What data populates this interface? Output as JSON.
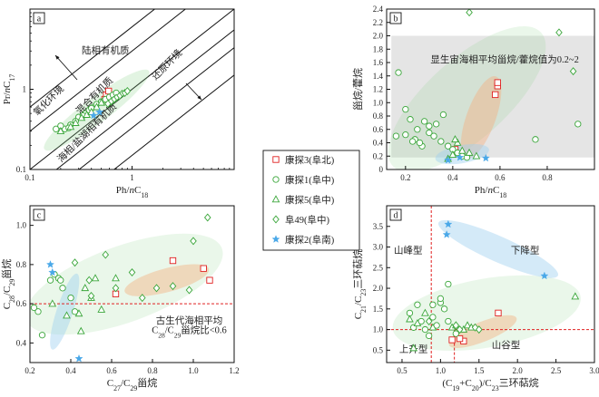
{
  "legend": {
    "entries": [
      {
        "label": "康探3(阜北)",
        "marker": "square",
        "color": "#e02020"
      },
      {
        "label": "康探1(阜中)",
        "marker": "circle",
        "color": "#3aa63a"
      },
      {
        "label": "康探5(阜中)",
        "marker": "triangle",
        "color": "#3aa63a"
      },
      {
        "label": "阜49(阜中)",
        "marker": "diamond",
        "color": "#3aa63a"
      },
      {
        "label": "康探2(阜南)",
        "marker": "star",
        "color": "#4aa8e8"
      }
    ]
  },
  "colors": {
    "red": "#e02020",
    "green": "#3aa63a",
    "blue": "#4aa8e8"
  },
  "chart_data": [
    {
      "id": "a",
      "panel_label": "a",
      "type": "scatter",
      "scale": "log-log",
      "xlabel": [
        "Ph/",
        "n",
        "C",
        "18"
      ],
      "ylabel": [
        "Pr/",
        "n",
        "C",
        "17"
      ],
      "xlim": [
        0.1,
        10
      ],
      "ylim": [
        0.1,
        10
      ],
      "xticks": [
        {
          "v": 0.1,
          "t": "0.1"
        },
        {
          "v": 1,
          "t": "1"
        }
      ],
      "yticks": [
        {
          "v": 0.1,
          "t": "0.1"
        },
        {
          "v": 1,
          "t": "1"
        }
      ],
      "annotations": [
        {
          "text": "陆相有机质",
          "x": 0.55,
          "y": 2.8,
          "color": "#e02020",
          "rotate": 0
        },
        {
          "text": "还原环境",
          "x": 2.3,
          "y": 1.9,
          "color": "#e02020",
          "rotate": -45
        },
        {
          "text": "混合有机质",
          "x": 0.45,
          "y": 0.78,
          "color": "#e02020",
          "rotate": -45
        },
        {
          "text": "氧化环境",
          "x": 0.16,
          "y": 0.68,
          "color": "#e02020",
          "rotate": -45
        },
        {
          "text": "海相/盐湖相有机质",
          "x": 0.38,
          "y": 0.27,
          "color": "#e02020",
          "rotate": -45
        }
      ],
      "series": [
        {
          "name": "康探3(阜北)",
          "marker": "square",
          "points": [
            [
              0.56,
              0.85
            ],
            [
              0.59,
              0.95
            ],
            [
              0.54,
              0.75
            ]
          ]
        },
        {
          "name": "康探1(阜中)",
          "marker": "circle",
          "points": [
            [
              0.22,
              0.32
            ],
            [
              0.25,
              0.36
            ],
            [
              0.3,
              0.45
            ],
            [
              0.35,
              0.5
            ],
            [
              0.38,
              0.55
            ],
            [
              0.42,
              0.6
            ],
            [
              0.45,
              0.65
            ],
            [
              0.5,
              0.7
            ],
            [
              0.55,
              0.75
            ],
            [
              0.6,
              0.8
            ],
            [
              0.65,
              0.85
            ],
            [
              0.7,
              0.9
            ],
            [
              0.28,
              0.4
            ],
            [
              0.33,
              0.47
            ],
            [
              0.4,
              0.58
            ],
            [
              0.18,
              0.32
            ],
            [
              0.2,
              0.35
            ],
            [
              0.24,
              0.33
            ]
          ]
        },
        {
          "name": "康探5(阜中)",
          "marker": "triangle",
          "points": [
            [
              0.2,
              0.3
            ],
            [
              0.25,
              0.34
            ],
            [
              0.28,
              0.38
            ],
            [
              0.32,
              0.44
            ],
            [
              0.36,
              0.48
            ],
            [
              0.4,
              0.52
            ],
            [
              0.45,
              0.6
            ],
            [
              0.5,
              0.68
            ]
          ]
        },
        {
          "name": "阜49(阜中)",
          "marker": "diamond",
          "points": [
            [
              0.8,
              0.88
            ],
            [
              0.85,
              0.9
            ],
            [
              0.9,
              0.95
            ],
            [
              0.75,
              0.82
            ],
            [
              0.7,
              0.78
            ],
            [
              0.66,
              0.74
            ],
            [
              0.62,
              0.7
            ],
            [
              0.58,
              0.66
            ]
          ]
        },
        {
          "name": "康探2(阜南)",
          "marker": "star",
          "points": [
            [
              0.42,
              0.47
            ],
            [
              0.48,
              0.52
            ]
          ]
        }
      ]
    },
    {
      "id": "b",
      "panel_label": "b",
      "type": "scatter",
      "scale": "linear",
      "xlabel": [
        "Ph/",
        "n",
        "C",
        "18"
      ],
      "ylabel": [
        "甾烷/藿烷"
      ],
      "xlim": [
        0.12,
        1.0
      ],
      "ylim": [
        0,
        2.4
      ],
      "xticks": [
        {
          "v": 0.2,
          "t": "0.2"
        },
        {
          "v": 0.4,
          "t": "0.4"
        },
        {
          "v": 0.6,
          "t": "0.6"
        },
        {
          "v": 0.8,
          "t": "0.8"
        }
      ],
      "yticks": [
        {
          "v": 0,
          "t": "0"
        },
        {
          "v": 0.2,
          "t": "0.2"
        },
        {
          "v": 0.4,
          "t": "0.4"
        },
        {
          "v": 0.6,
          "t": "0.6"
        },
        {
          "v": 0.8,
          "t": "0.8"
        },
        {
          "v": 1.0,
          "t": "1.0"
        },
        {
          "v": 1.2,
          "t": "1.2"
        },
        {
          "v": 1.4,
          "t": "1.4"
        },
        {
          "v": 1.6,
          "t": "1.6"
        },
        {
          "v": 1.8,
          "t": "1.8"
        },
        {
          "v": 2.0,
          "t": "2.0"
        },
        {
          "v": 2.2,
          "t": "2.2"
        },
        {
          "v": 2.4,
          "t": "2.4"
        }
      ],
      "annotations": [
        {
          "text": "显生宙海相平均甾烷/藿烷值为0.2~2",
          "x": 0.62,
          "y": 1.6,
          "color": "#e02020",
          "rotate": 0
        }
      ],
      "series": [
        {
          "name": "康探3(阜北)",
          "marker": "square",
          "points": [
            [
              0.58,
              1.12
            ],
            [
              0.59,
              1.25
            ],
            [
              0.59,
              1.3
            ],
            [
              0.41,
              0.3
            ]
          ]
        },
        {
          "name": "康探1(阜中)",
          "marker": "circle",
          "points": [
            [
              0.17,
              1.45
            ],
            [
              0.2,
              0.9
            ],
            [
              0.22,
              0.75
            ],
            [
              0.24,
              0.45
            ],
            [
              0.25,
              0.6
            ],
            [
              0.27,
              0.35
            ],
            [
              0.28,
              0.72
            ],
            [
              0.3,
              0.55
            ],
            [
              0.3,
              0.65
            ],
            [
              0.32,
              0.5
            ],
            [
              0.33,
              0.68
            ],
            [
              0.35,
              0.42
            ],
            [
              0.36,
              0.82
            ],
            [
              0.38,
              0.35
            ],
            [
              0.4,
              0.3
            ],
            [
              0.42,
              0.25
            ],
            [
              0.44,
              0.2
            ],
            [
              0.46,
              0.18
            ],
            [
              0.2,
              0.52
            ],
            [
              0.26,
              0.4
            ],
            [
              0.75,
              0.45
            ],
            [
              0.93,
              0.68
            ],
            [
              0.16,
              0.5
            ],
            [
              0.23,
              0.42
            ]
          ]
        },
        {
          "name": "康探5(阜中)",
          "marker": "triangle",
          "points": [
            [
              0.4,
              0.22
            ],
            [
              0.42,
              0.4
            ],
            [
              0.44,
              0.28
            ],
            [
              0.47,
              0.25
            ],
            [
              0.5,
              0.2
            ],
            [
              0.38,
              0.16
            ],
            [
              0.41,
              0.45
            ]
          ]
        },
        {
          "name": "阜49(阜中)",
          "marker": "diamond",
          "points": [
            [
              0.47,
              2.35
            ],
            [
              0.85,
              2.05
            ],
            [
              0.91,
              1.47
            ]
          ]
        },
        {
          "name": "康探2(阜南)",
          "marker": "star",
          "points": [
            [
              0.38,
              0.14
            ],
            [
              0.54,
              0.17
            ],
            [
              0.43,
              0.18
            ]
          ]
        }
      ]
    },
    {
      "id": "c",
      "panel_label": "c",
      "type": "scatter",
      "scale": "linear",
      "xlabel": [
        "C",
        "27",
        "/C",
        "29",
        "甾烷"
      ],
      "ylabel": [
        "C",
        "28",
        "/C",
        "29",
        "甾烷"
      ],
      "xlim": [
        0.2,
        1.2
      ],
      "ylim": [
        0.3,
        1.1
      ],
      "xticks": [
        {
          "v": 0.2,
          "t": "0.2"
        },
        {
          "v": 0.4,
          "t": "0.4"
        },
        {
          "v": 0.6,
          "t": "0.6"
        },
        {
          "v": 0.8,
          "t": "0.8"
        },
        {
          "v": 1.0,
          "t": "1.0"
        },
        {
          "v": 1.2,
          "t": "1.2"
        }
      ],
      "yticks": [
        {
          "v": 0.4,
          "t": "0.4"
        },
        {
          "v": 0.6,
          "t": "0.6"
        },
        {
          "v": 0.8,
          "t": "0.8"
        },
        {
          "v": 1.0,
          "t": "1.0"
        }
      ],
      "hline": 0.6,
      "annotations": [
        {
          "text": "古生代海相平均",
          "x": 0.98,
          "y": 0.5,
          "color": "#e02020",
          "rotate": 0
        },
        {
          "text": [
            "C",
            "28",
            "/C",
            "29",
            "甾烷比<0.6"
          ],
          "x": 0.98,
          "y": 0.45,
          "color": "#e02020",
          "rotate": 0
        }
      ],
      "series": [
        {
          "name": "康探3(阜北)",
          "marker": "square",
          "points": [
            [
              0.62,
              0.65
            ],
            [
              0.9,
              0.82
            ],
            [
              1.05,
              0.78
            ],
            [
              1.08,
              0.72
            ]
          ]
        },
        {
          "name": "康探1(阜中)",
          "marker": "circle",
          "points": [
            [
              0.32,
              0.75
            ],
            [
              0.34,
              0.73
            ],
            [
              0.35,
              0.72
            ],
            [
              0.4,
              0.63
            ],
            [
              0.36,
              0.68
            ],
            [
              0.42,
              0.56
            ],
            [
              0.26,
              0.44
            ],
            [
              0.22,
              0.58
            ],
            [
              0.24,
              0.56
            ],
            [
              0.3,
              0.72
            ]
          ]
        },
        {
          "name": "康探5(阜中)",
          "marker": "triangle",
          "points": [
            [
              0.31,
              0.6
            ],
            [
              0.38,
              0.54
            ],
            [
              0.44,
              0.55
            ],
            [
              0.47,
              0.68
            ],
            [
              0.5,
              0.63
            ],
            [
              0.52,
              0.73
            ],
            [
              0.62,
              0.73
            ],
            [
              0.55,
              0.57
            ],
            [
              0.45,
              0.46
            ]
          ]
        },
        {
          "name": "阜49(阜中)",
          "marker": "diamond",
          "points": [
            [
              0.42,
              0.81
            ],
            [
              0.49,
              0.72
            ],
            [
              0.57,
              0.85
            ],
            [
              0.62,
              0.68
            ],
            [
              0.7,
              0.76
            ],
            [
              0.75,
              0.63
            ],
            [
              0.82,
              0.68
            ],
            [
              0.9,
              0.69
            ],
            [
              1.0,
              0.92
            ],
            [
              1.07,
              1.04
            ],
            [
              0.98,
              0.67
            ],
            [
              0.5,
              0.64
            ]
          ]
        },
        {
          "name": "康探2(阜南)",
          "marker": "star",
          "points": [
            [
              0.3,
              0.8
            ],
            [
              0.31,
              0.76
            ],
            [
              0.44,
              0.32
            ]
          ]
        }
      ]
    },
    {
      "id": "d",
      "panel_label": "d",
      "type": "scatter",
      "scale": "linear",
      "xlabel": [
        "(C",
        "19",
        "+C",
        "20",
        ")/C",
        "23",
        "三环萜烷"
      ],
      "ylabel": [
        "C",
        "21",
        "/C",
        "23",
        "三环萜烷"
      ],
      "xlim": [
        0.3,
        3.0
      ],
      "ylim": [
        0.2,
        4.0
      ],
      "xticks": [
        {
          "v": 0.5,
          "t": "0.5"
        },
        {
          "v": 1.0,
          "t": "1.0"
        },
        {
          "v": 1.5,
          "t": "1.5"
        },
        {
          "v": 2.0,
          "t": "2.0"
        },
        {
          "v": 2.5,
          "t": "2.5"
        },
        {
          "v": 3.0,
          "t": "3.0"
        }
      ],
      "yticks": [
        {
          "v": 0.5,
          "t": "0.5"
        },
        {
          "v": 1.0,
          "t": "1.0"
        },
        {
          "v": 1.5,
          "t": "1.5"
        },
        {
          "v": 2.0,
          "t": "2.0"
        },
        {
          "v": 2.5,
          "t": "2.5"
        },
        {
          "v": 3.0,
          "t": "3.0"
        },
        {
          "v": 3.5,
          "t": "3.5"
        }
      ],
      "hline": 1.0,
      "vline": 0.88,
      "annotations": [
        {
          "text": "山峰型",
          "x": 0.58,
          "y": 2.85,
          "color": "#e02020",
          "rotate": 0
        },
        {
          "text": "下降型",
          "x": 2.1,
          "y": 2.85,
          "color": "#e02020",
          "rotate": 0
        },
        {
          "text": "上升型",
          "x": 0.65,
          "y": 0.45,
          "color": "#e02020",
          "rotate": 0
        },
        {
          "text": "山谷型",
          "x": 1.85,
          "y": 0.55,
          "color": "#e02020",
          "rotate": 0
        }
      ],
      "series": [
        {
          "name": "康探3(阜北)",
          "marker": "square",
          "points": [
            [
              1.75,
              1.4
            ],
            [
              1.15,
              0.75
            ],
            [
              1.3,
              0.72
            ],
            [
              1.25,
              0.78
            ]
          ]
        },
        {
          "name": "康探1(阜中)",
          "marker": "circle",
          "points": [
            [
              0.7,
              1.6
            ],
            [
              0.75,
              1.2
            ],
            [
              0.8,
              1.0
            ],
            [
              0.9,
              1.3
            ],
            [
              0.95,
              1.1
            ],
            [
              1.0,
              1.65
            ],
            [
              1.05,
              1.5
            ],
            [
              1.1,
              1.2
            ],
            [
              0.65,
              1.05
            ],
            [
              0.85,
              0.85
            ],
            [
              1.1,
              2.1
            ],
            [
              0.9,
              1.6
            ],
            [
              0.6,
              1.4
            ],
            [
              1.0,
              1.75
            ],
            [
              1.2,
              0.9
            ]
          ]
        },
        {
          "name": "康探5(阜中)",
          "marker": "triangle",
          "points": [
            [
              0.6,
              1.25
            ],
            [
              0.7,
              1.15
            ],
            [
              0.8,
              1.4
            ],
            [
              0.9,
              1.05
            ],
            [
              1.15,
              1.05
            ],
            [
              1.2,
              1.1
            ],
            [
              1.3,
              1.0
            ],
            [
              1.35,
              1.1
            ],
            [
              1.4,
              1.05
            ],
            [
              2.75,
              1.8
            ],
            [
              0.65,
              0.55
            ]
          ]
        },
        {
          "name": "阜49(阜中)",
          "marker": "diamond",
          "points": [
            [
              1.25,
              1.0
            ],
            [
              1.45,
              1.05
            ],
            [
              1.5,
              1.0
            ],
            [
              1.2,
              1.1
            ],
            [
              0.85,
              1.2
            ]
          ]
        },
        {
          "name": "康探2(阜南)",
          "marker": "star",
          "points": [
            [
              1.1,
              3.55
            ],
            [
              1.08,
              3.3
            ],
            [
              2.35,
              2.3
            ]
          ]
        }
      ]
    }
  ]
}
